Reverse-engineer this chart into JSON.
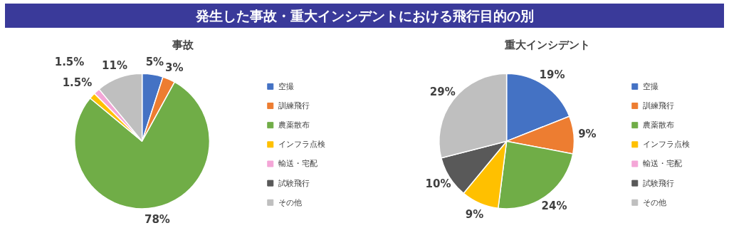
{
  "chart_data": [
    {
      "type": "pie",
      "title": "発生した事故・重大インシデントにおける飛行目的の別",
      "subtitle": "事故",
      "categories": [
        "空撮",
        "訓練飛行",
        "農薬散布",
        "インフラ点検",
        "輸送・宅配",
        "試験飛行",
        "その他"
      ],
      "values": [
        5,
        3,
        78,
        1.5,
        1.5,
        0,
        11
      ],
      "colors": [
        "#4472c4",
        "#ed7d31",
        "#70ad47",
        "#ffc000",
        "#f4a6d7",
        "#595959",
        "#bfbfbf"
      ],
      "value_labels": [
        "5%",
        "3%",
        "78%",
        "1.5%",
        "1.5%",
        null,
        "11%"
      ],
      "legend": "right"
    },
    {
      "type": "pie",
      "title": "重大インシデント",
      "categories": [
        "空撮",
        "訓練飛行",
        "農薬散布",
        "インフラ点検",
        "輸送・宅配",
        "試験飛行",
        "その他"
      ],
      "values": [
        19,
        9,
        24,
        9,
        0,
        10,
        29
      ],
      "colors": [
        "#4472c4",
        "#ed7d31",
        "#70ad47",
        "#ffc000",
        "#f4a6d7",
        "#595959",
        "#bfbfbf"
      ],
      "value_labels": [
        "19%",
        "9%",
        "24%",
        "9%",
        null,
        "10%",
        "29%"
      ],
      "legend": "right"
    }
  ]
}
